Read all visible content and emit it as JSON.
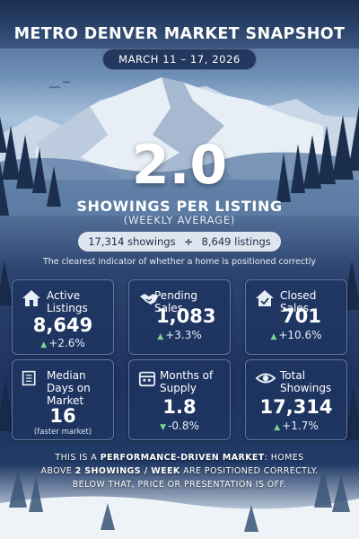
{
  "header": {
    "title": "METRO DENVER MARKET SNAPSHOT",
    "date_range": "MARCH 11 – 17, 2026"
  },
  "hero": {
    "value": "2.0",
    "label": "SHOWINGS PER LISTING",
    "sublabel": "(WEEKLY AVERAGE)",
    "calc_left": "17,314 showings",
    "calc_op": "÷",
    "calc_right": "8,649 listings",
    "tagline": "The clearest indicator of whether a home is positioned correctly"
  },
  "cards": [
    {
      "label": "Active Listings",
      "value": "8,649",
      "change": "+2.6%",
      "direction": "up",
      "icon": "house-icon"
    },
    {
      "label": "Pending Sales",
      "value": "1,083",
      "change": "+3.3%",
      "direction": "up",
      "icon": "handshake-icon"
    },
    {
      "label": "Closed Sales",
      "value": "701",
      "change": "+10.6%",
      "direction": "up",
      "icon": "house-check-icon"
    },
    {
      "label": "Median Days on Market",
      "value": "16",
      "note": "(faster market)",
      "icon": "document-icon"
    },
    {
      "label": "Months of Supply",
      "value": "1.8",
      "change": "-0.8%",
      "direction": "down",
      "icon": "calendar-icon"
    },
    {
      "label": "Total Showings",
      "value": "17,314",
      "change": "+1.7%",
      "direction": "up",
      "icon": "eye-icon"
    }
  ],
  "footer": {
    "line1_a": "THIS IS A ",
    "line1_bold": "PERFORMANCE-DRIVEN MARKET",
    "line1_b": ": HOMES",
    "line2_a": "ABOVE ",
    "line2_bold": "2 SHOWINGS / WEEK",
    "line2_b": " ARE POSITIONED CORRECTLY.",
    "line3": "BELOW THAT, PRICE OR PRESENTATION IS OFF."
  },
  "colors": {
    "card_bg": "#1e3460",
    "positive": "#7ed38f",
    "accent_dark": "#1d2d4b"
  }
}
